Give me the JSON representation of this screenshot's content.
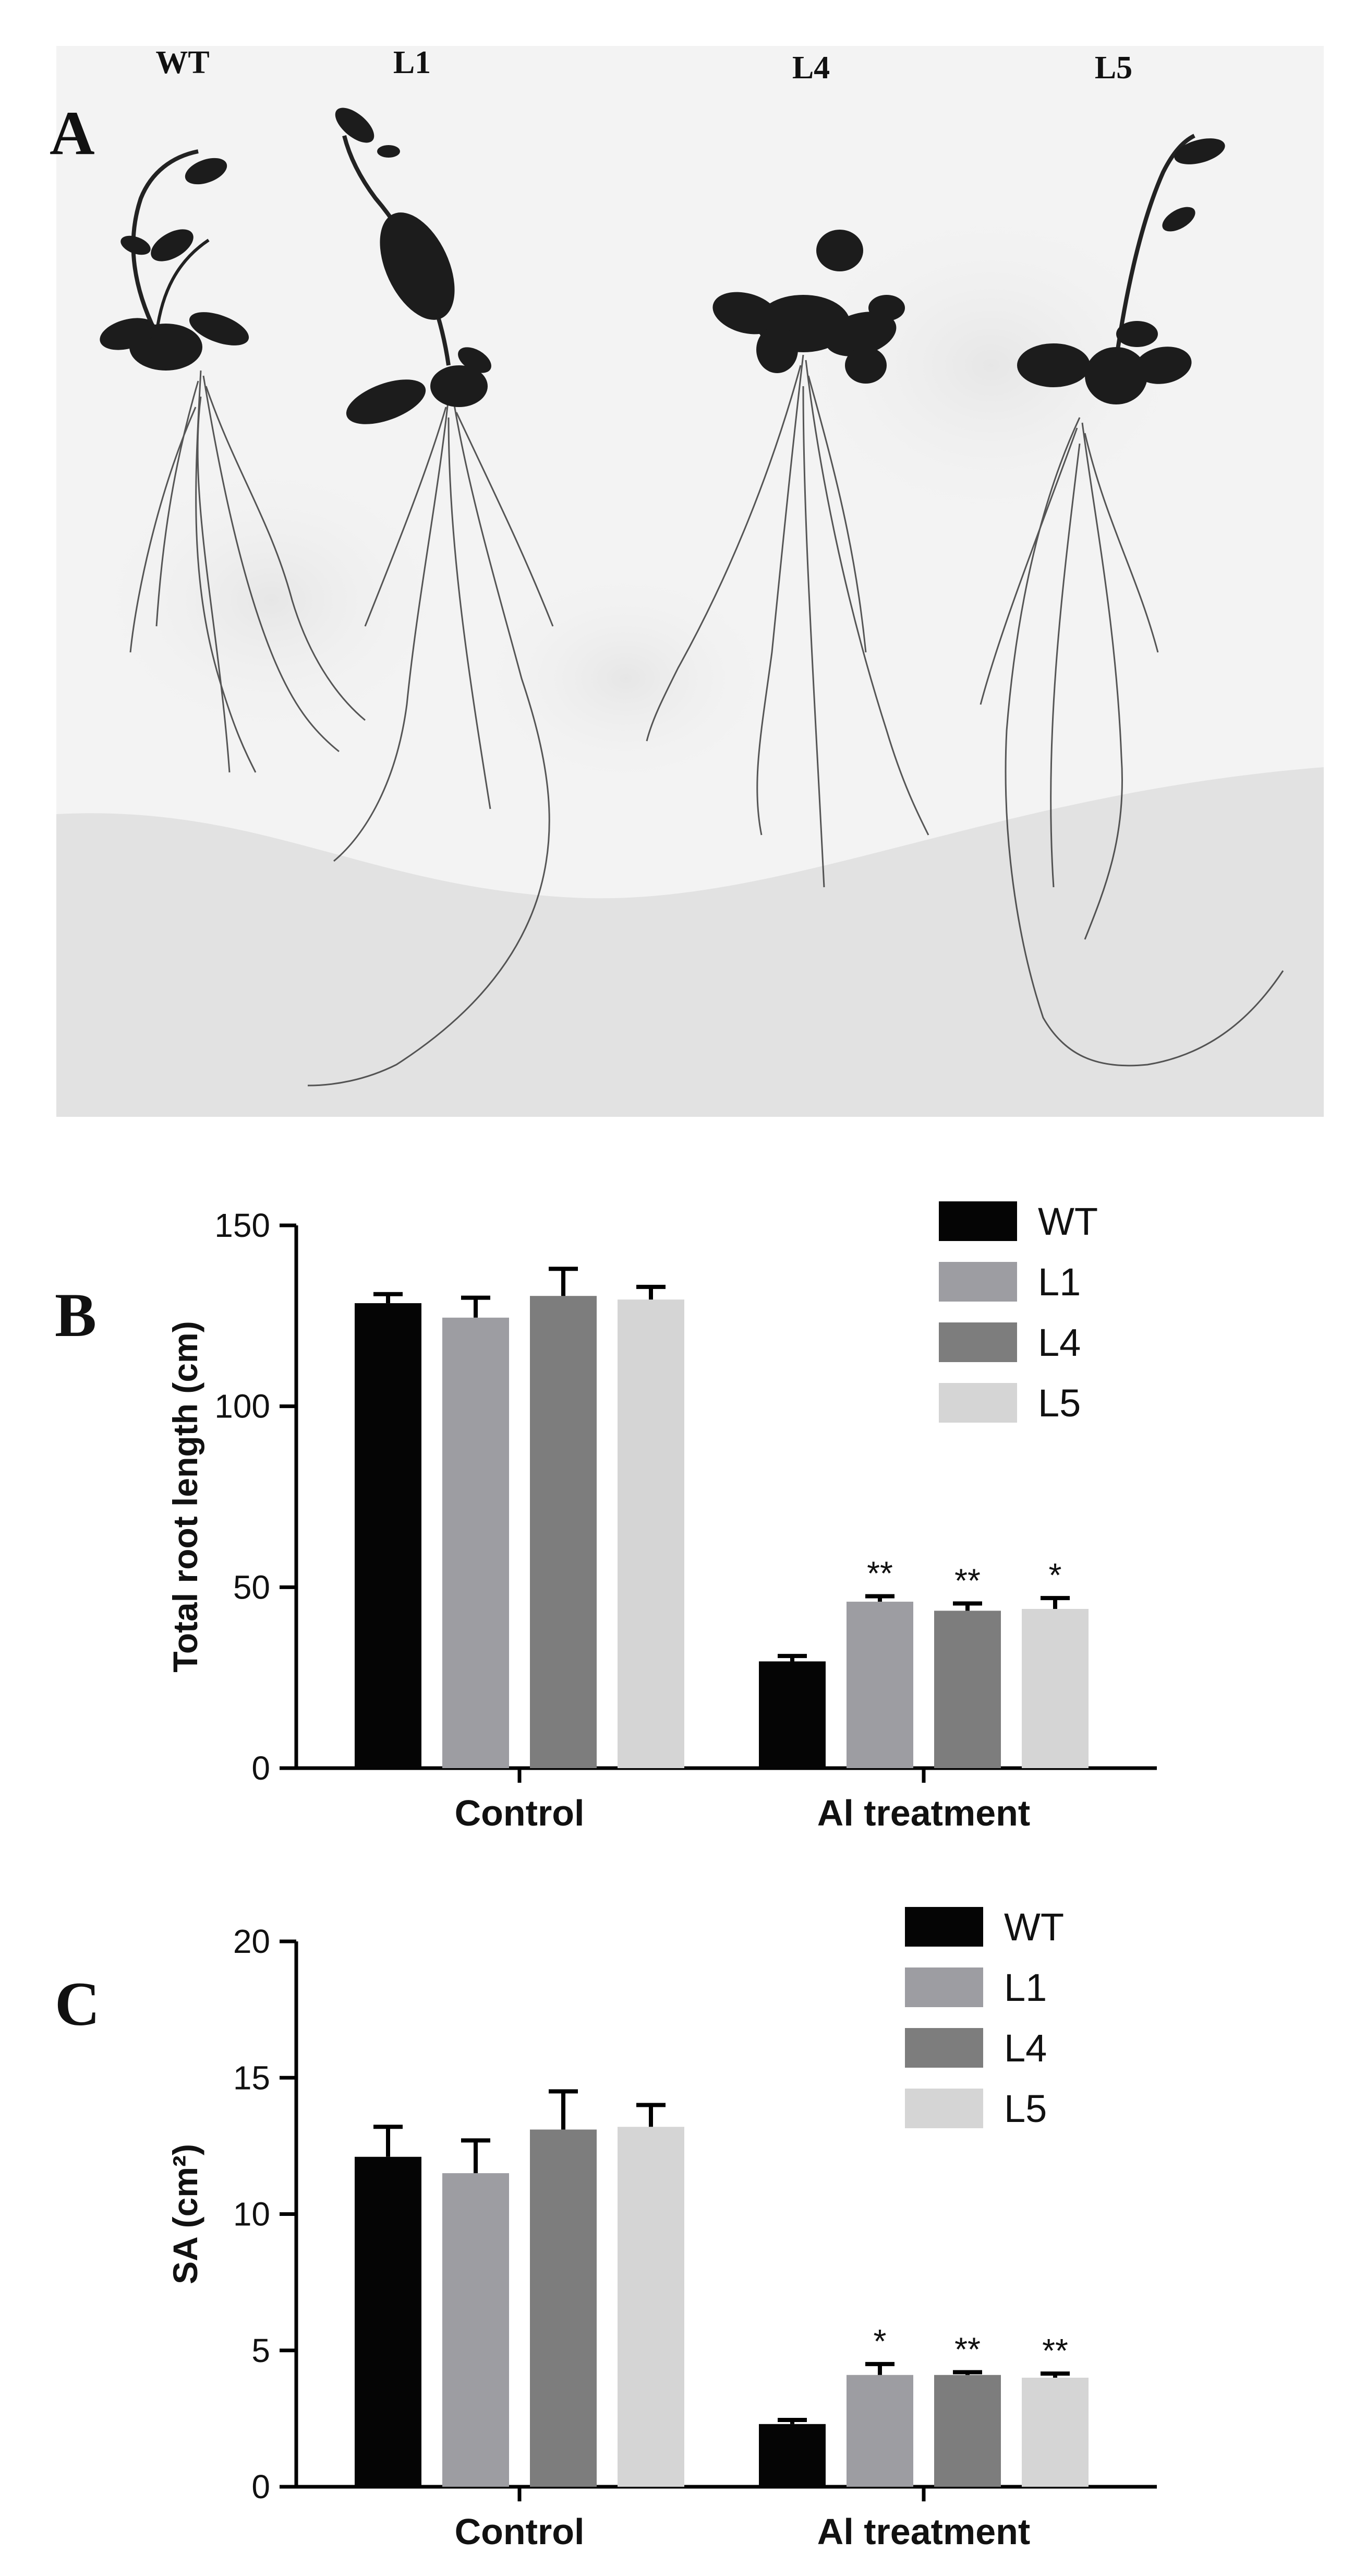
{
  "figure": {
    "panel_letters": {
      "a": "A",
      "b": "B",
      "c": "C"
    },
    "photo": {
      "plant_labels": [
        "WT",
        "L1",
        "L4",
        "L5"
      ]
    }
  },
  "chart_data": [
    {
      "type": "bar",
      "panel": "B",
      "categories": [
        "Control",
        "Al treatment"
      ],
      "ylabel": "Total root length (cm)",
      "ylim": [
        0,
        150
      ],
      "yticks": [
        0,
        50,
        100,
        150
      ],
      "legend_position": "top-right",
      "series": [
        {
          "name": "WT",
          "color": "#050505",
          "values": [
            128.5,
            29.5
          ],
          "errors": [
            2.5,
            1.5
          ],
          "significance": [
            "",
            ""
          ]
        },
        {
          "name": "L1",
          "color": "#9d9da2",
          "values": [
            124.5,
            46.0
          ],
          "errors": [
            5.5,
            1.5
          ],
          "significance": [
            "",
            "**"
          ]
        },
        {
          "name": "L4",
          "color": "#7d7d7d",
          "values": [
            130.5,
            43.5
          ],
          "errors": [
            7.5,
            2.0
          ],
          "significance": [
            "",
            "**"
          ]
        },
        {
          "name": "L5",
          "color": "#d5d5d5",
          "values": [
            129.5,
            44.0
          ],
          "errors": [
            3.5,
            3.0
          ],
          "significance": [
            "",
            "*"
          ]
        }
      ]
    },
    {
      "type": "bar",
      "panel": "C",
      "categories": [
        "Control",
        "Al treatment"
      ],
      "ylabel": "SA (cm²)",
      "ylim": [
        0,
        20
      ],
      "yticks": [
        0,
        5,
        10,
        15,
        20
      ],
      "legend_position": "top-right",
      "series": [
        {
          "name": "WT",
          "color": "#050505",
          "values": [
            12.1,
            2.3
          ],
          "errors": [
            1.1,
            0.15
          ],
          "significance": [
            "",
            ""
          ]
        },
        {
          "name": "L1",
          "color": "#9d9da2",
          "values": [
            11.5,
            4.1
          ],
          "errors": [
            1.2,
            0.4
          ],
          "significance": [
            "",
            "*"
          ]
        },
        {
          "name": "L4",
          "color": "#7d7d7d",
          "values": [
            13.1,
            4.1
          ],
          "errors": [
            1.4,
            0.1
          ],
          "significance": [
            "",
            "**"
          ]
        },
        {
          "name": "L5",
          "color": "#d5d5d5",
          "values": [
            13.2,
            4.0
          ],
          "errors": [
            0.8,
            0.15
          ],
          "significance": [
            "",
            "**"
          ]
        }
      ]
    }
  ]
}
